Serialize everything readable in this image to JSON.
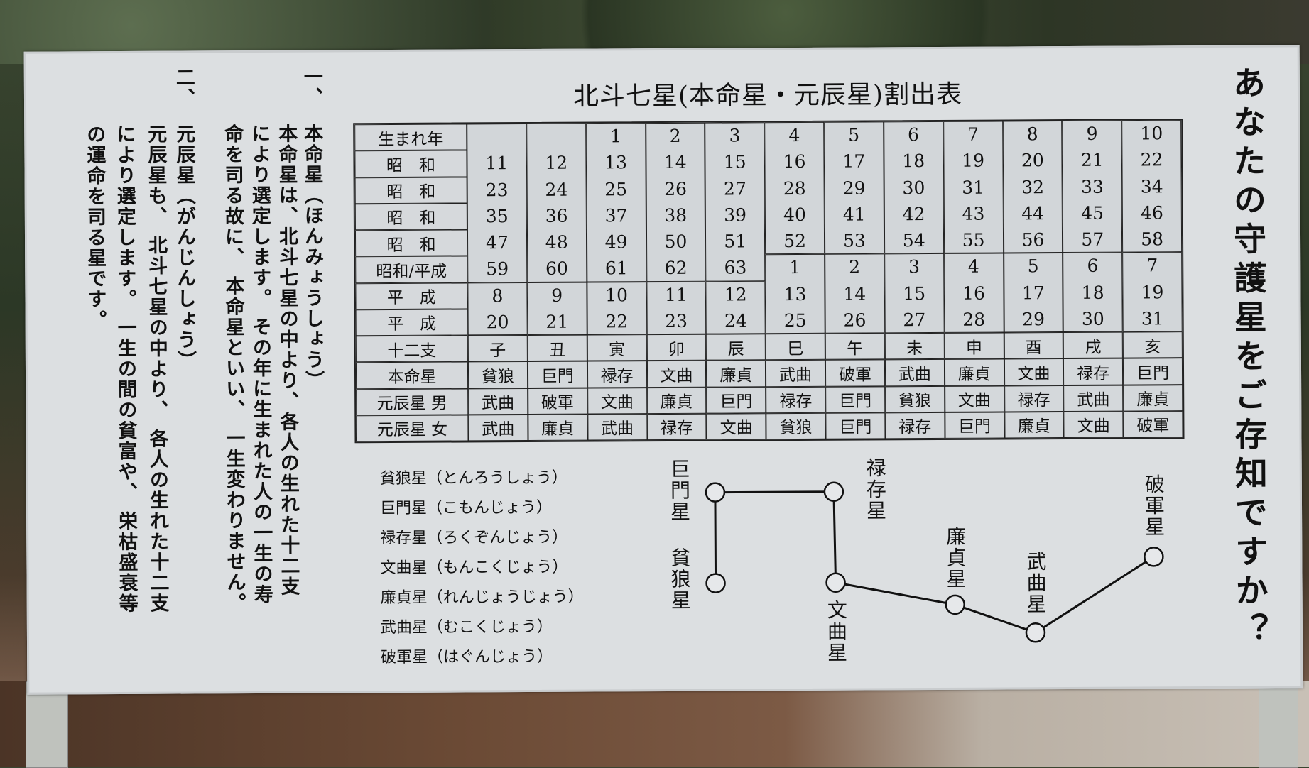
{
  "title": "北斗七星(本命星・元辰星)割出表",
  "heading": "あなたの守護星をご存知ですか？",
  "explanation": {
    "section1": {
      "number": "一、",
      "columns": [
        "本命星（ほんみょうしょう）",
        "本命星は、北斗七星の中より、各人の生れた十二支",
        "により選定します。 その年に生まれた人の一生の寿",
        "命を司る故に、 本命星といい、 一生変わりません。"
      ]
    },
    "section2": {
      "number": "二、",
      "columns": [
        "元辰星（がんじんしょう）",
        "元辰星も、 北斗七星の中より、 各人の生れた十二支",
        "により選定します。 一生の間の貧富や、 栄枯盛衰等",
        "の運命を司る星です。"
      ]
    }
  },
  "table": {
    "row_labels": [
      "生まれ年",
      "昭　和",
      "昭　和",
      "昭　和",
      "昭　和",
      "昭和/平成",
      "平　成",
      "平　成",
      "十二支",
      "本命星",
      "元辰星 男",
      "元辰星 女"
    ],
    "year_columns": [
      [
        "",
        "11",
        "23",
        "35",
        "47",
        "59",
        "8",
        "20"
      ],
      [
        "",
        "12",
        "24",
        "36",
        "48",
        "60",
        "9",
        "21"
      ],
      [
        "1",
        "13",
        "25",
        "37",
        "49",
        "61",
        "10",
        "22"
      ],
      [
        "2",
        "14",
        "26",
        "38",
        "50",
        "62",
        "11",
        "23"
      ],
      [
        "3",
        "15",
        "27",
        "39",
        "51",
        "63",
        "12",
        "24"
      ],
      [
        "4",
        "16",
        "28",
        "40",
        "52",
        "1",
        "13",
        "25"
      ],
      [
        "5",
        "17",
        "29",
        "41",
        "53",
        "2",
        "14",
        "26"
      ],
      [
        "6",
        "18",
        "30",
        "42",
        "54",
        "3",
        "15",
        "27"
      ],
      [
        "7",
        "19",
        "31",
        "43",
        "55",
        "4",
        "16",
        "28"
      ],
      [
        "8",
        "20",
        "32",
        "44",
        "56",
        "5",
        "17",
        "29"
      ],
      [
        "9",
        "21",
        "33",
        "45",
        "57",
        "6",
        "18",
        "30"
      ],
      [
        "10",
        "22",
        "34",
        "46",
        "58",
        "7",
        "19",
        "31"
      ]
    ],
    "zodiac": [
      "子",
      "丑",
      "寅",
      "卯",
      "辰",
      "巳",
      "午",
      "未",
      "申",
      "酉",
      "戌",
      "亥"
    ],
    "honmei": [
      "貧狼",
      "巨門",
      "禄存",
      "文曲",
      "廉貞",
      "武曲",
      "破軍",
      "武曲",
      "廉貞",
      "文曲",
      "禄存",
      "巨門"
    ],
    "genshin_male": [
      "武曲",
      "破軍",
      "文曲",
      "廉貞",
      "巨門",
      "禄存",
      "巨門",
      "貧狼",
      "文曲",
      "禄存",
      "武曲",
      "廉貞"
    ],
    "genshin_female": [
      "武曲",
      "廉貞",
      "武曲",
      "禄存",
      "文曲",
      "貧狼",
      "巨門",
      "禄存",
      "巨門",
      "廉貞",
      "文曲",
      "破軍"
    ]
  },
  "readings": [
    "貧狼星（とんろうしょう）",
    "巨門星（こもんじょう）",
    "禄存星（ろくぞんじょう）",
    "文曲星（もんこくじょう）",
    "廉貞星（れんじょうじょう）",
    "武曲星（むこくじょう）",
    "破軍星（はぐんじょう）"
  ],
  "diagram": {
    "stars": [
      "貧狼星",
      "巨門星",
      "禄存星",
      "文曲星",
      "廉貞星",
      "武曲星",
      "破軍星"
    ]
  }
}
